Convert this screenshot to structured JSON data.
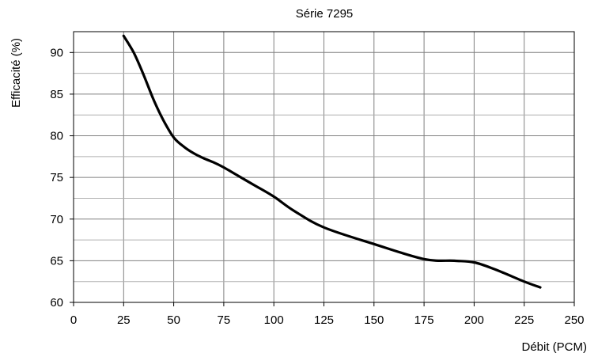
{
  "chart_data": {
    "type": "line",
    "title": "Série 7295",
    "xlabel": "Débit (PCM)",
    "ylabel": "Efficacité (%)",
    "xlim": [
      0,
      250
    ],
    "ylim": [
      60,
      92.5
    ],
    "x_ticks": [
      0,
      25,
      50,
      75,
      100,
      125,
      150,
      175,
      200,
      225,
      250
    ],
    "x_tick_labels": [
      "0",
      "25",
      "50",
      "75",
      "100",
      "125",
      "150",
      "175",
      "200",
      "225",
      "250"
    ],
    "y_ticks": [
      60,
      65,
      70,
      75,
      80,
      85,
      90
    ],
    "y_tick_labels": [
      "60",
      "65",
      "70",
      "75",
      "80",
      "85",
      "90"
    ],
    "grid": true,
    "legend": "none",
    "line_color": "#000000",
    "series": [
      {
        "x": [
          25,
          30,
          35,
          40,
          45,
          50,
          55,
          60,
          65,
          70,
          75,
          80,
          90,
          100,
          110,
          125,
          150,
          175,
          190,
          200,
          210,
          225,
          233
        ],
        "y": [
          92,
          90,
          87.3,
          84.3,
          81.8,
          79.8,
          78.7,
          77.9,
          77.3,
          76.8,
          76.2,
          75.5,
          74.1,
          72.7,
          71.0,
          69.0,
          67.0,
          65.2,
          65.0,
          64.8,
          64.0,
          62.5,
          61.8
        ]
      }
    ]
  }
}
